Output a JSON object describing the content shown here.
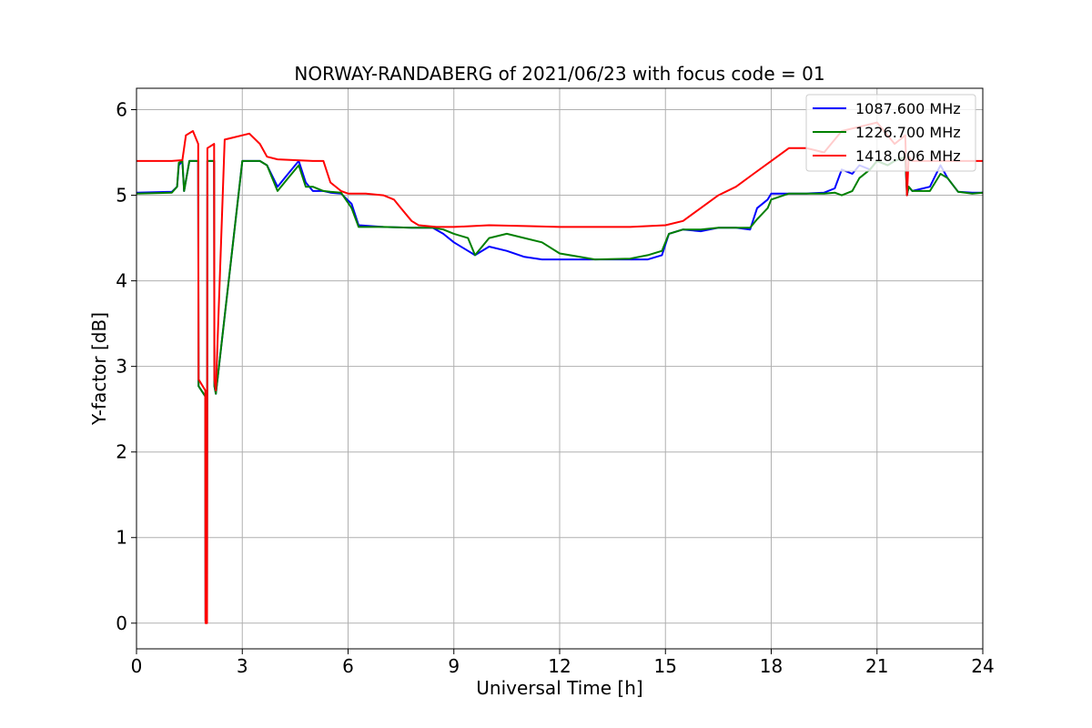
{
  "chart_data": {
    "type": "line",
    "title": "NORWAY-RANDABERG of 2021/06/23 with focus code = 01",
    "xlabel": "Universal Time [h]",
    "ylabel": "Y-factor [dB]",
    "xlim": [
      0,
      24
    ],
    "ylim": [
      -0.3,
      6.25
    ],
    "xticks": [
      0,
      3,
      6,
      9,
      12,
      15,
      18,
      21,
      24
    ],
    "yticks": [
      0,
      1,
      2,
      3,
      4,
      5,
      6
    ],
    "grid": true,
    "legend_position": "top-right",
    "series": [
      {
        "name": "1087.600 MHz",
        "color": "#0000ff",
        "x": [
          0,
          1.0,
          1.15,
          1.2,
          1.3,
          1.35,
          1.5,
          1.75,
          1.76,
          1.95,
          1.96,
          2.0,
          2.01,
          2.2,
          2.21,
          2.25,
          3.0,
          3.5,
          3.7,
          4.0,
          4.3,
          4.6,
          4.8,
          5.0,
          5.3,
          5.5,
          5.8,
          6.1,
          6.3,
          7.0,
          7.8,
          8.4,
          8.7,
          9.0,
          9.4,
          9.6,
          10.0,
          10.5,
          11.0,
          11.5,
          12.0,
          13.0,
          14.0,
          14.5,
          14.9,
          15.1,
          15.5,
          16.0,
          16.5,
          17.0,
          17.4,
          17.6,
          17.9,
          18.0,
          18.5,
          19.0,
          19.5,
          19.8,
          20.0,
          20.3,
          20.5,
          20.8,
          21.0,
          21.3,
          21.5,
          21.8,
          21.85,
          21.9,
          22.0,
          22.5,
          22.8,
          23.0,
          23.3,
          23.7,
          24.0
        ],
        "y": [
          5.03,
          5.04,
          5.1,
          5.35,
          5.4,
          5.05,
          5.4,
          5.4,
          2.77,
          2.65,
          0.02,
          0.02,
          5.4,
          5.4,
          2.77,
          2.68,
          5.4,
          5.4,
          5.35,
          5.1,
          5.25,
          5.4,
          5.15,
          5.05,
          5.05,
          5.03,
          5.02,
          4.9,
          4.65,
          4.63,
          4.62,
          4.62,
          4.55,
          4.45,
          4.35,
          4.3,
          4.4,
          4.35,
          4.28,
          4.25,
          4.25,
          4.25,
          4.25,
          4.25,
          4.3,
          4.55,
          4.6,
          4.58,
          4.62,
          4.62,
          4.6,
          4.85,
          4.95,
          5.02,
          5.02,
          5.02,
          5.03,
          5.08,
          5.3,
          5.25,
          5.35,
          5.3,
          5.4,
          5.35,
          5.4,
          5.45,
          5.0,
          5.1,
          5.05,
          5.1,
          5.35,
          5.2,
          5.04,
          5.03,
          5.03
        ]
      },
      {
        "name": "1226.700 MHz",
        "color": "#008000",
        "x": [
          0,
          1.0,
          1.15,
          1.2,
          1.3,
          1.35,
          1.5,
          1.75,
          1.76,
          1.95,
          1.96,
          2.0,
          2.01,
          2.2,
          2.21,
          2.25,
          3.0,
          3.5,
          3.7,
          4.0,
          4.3,
          4.6,
          4.8,
          5.0,
          5.3,
          5.5,
          5.8,
          6.1,
          6.3,
          7.0,
          7.8,
          8.4,
          8.7,
          9.0,
          9.4,
          9.6,
          10.0,
          10.5,
          11.0,
          11.5,
          12.0,
          13.0,
          14.0,
          14.5,
          14.9,
          15.1,
          15.5,
          16.0,
          16.5,
          17.0,
          17.4,
          17.6,
          17.9,
          18.0,
          18.5,
          19.0,
          19.5,
          19.8,
          20.0,
          20.3,
          20.5,
          20.8,
          21.0,
          21.3,
          21.5,
          21.8,
          21.85,
          21.9,
          22.0,
          22.5,
          22.8,
          23.0,
          23.3,
          23.7,
          24.0
        ],
        "y": [
          5.02,
          5.03,
          5.1,
          5.38,
          5.4,
          5.05,
          5.4,
          5.4,
          2.77,
          2.65,
          0.02,
          0.02,
          5.4,
          5.4,
          2.77,
          2.68,
          5.4,
          5.4,
          5.35,
          5.05,
          5.2,
          5.35,
          5.1,
          5.1,
          5.05,
          5.04,
          5.03,
          4.85,
          4.63,
          4.63,
          4.62,
          4.62,
          4.6,
          4.55,
          4.5,
          4.3,
          4.5,
          4.55,
          4.5,
          4.45,
          4.32,
          4.25,
          4.26,
          4.3,
          4.35,
          4.55,
          4.6,
          4.6,
          4.62,
          4.62,
          4.62,
          4.72,
          4.85,
          4.95,
          5.02,
          5.02,
          5.02,
          5.03,
          5.0,
          5.05,
          5.2,
          5.3,
          5.4,
          5.35,
          5.4,
          5.45,
          5.0,
          5.1,
          5.05,
          5.05,
          5.25,
          5.2,
          5.04,
          5.02,
          5.03
        ]
      },
      {
        "name": "1418.006 MHz",
        "color": "#ff0000",
        "x": [
          0,
          1.0,
          1.3,
          1.4,
          1.6,
          1.75,
          1.76,
          1.95,
          1.96,
          2.0,
          2.01,
          2.2,
          2.21,
          2.25,
          2.5,
          3.0,
          3.2,
          3.5,
          3.7,
          4.0,
          5.0,
          5.3,
          5.5,
          5.8,
          6.0,
          6.5,
          7.0,
          7.3,
          7.5,
          7.8,
          8.0,
          8.5,
          9.0,
          10.0,
          11.0,
          12.0,
          13.0,
          14.0,
          15.0,
          15.5,
          16.0,
          16.5,
          17.0,
          17.5,
          18.0,
          18.5,
          19.0,
          19.5,
          20.0,
          20.5,
          21.0,
          21.3,
          21.5,
          21.8,
          21.85,
          21.9,
          22.0,
          23.0,
          24.0
        ],
        "y": [
          5.4,
          5.4,
          5.41,
          5.7,
          5.75,
          5.6,
          2.85,
          2.72,
          0.0,
          0.0,
          5.55,
          5.6,
          2.85,
          2.72,
          5.65,
          5.7,
          5.72,
          5.6,
          5.45,
          5.42,
          5.4,
          5.4,
          5.15,
          5.05,
          5.02,
          5.02,
          5.0,
          4.95,
          4.85,
          4.7,
          4.65,
          4.63,
          4.63,
          4.65,
          4.64,
          4.63,
          4.63,
          4.63,
          4.65,
          4.7,
          4.85,
          5.0,
          5.1,
          5.25,
          5.4,
          5.55,
          5.55,
          5.5,
          5.75,
          5.8,
          5.85,
          5.7,
          5.6,
          5.7,
          5.0,
          5.45,
          5.4,
          5.4,
          5.4
        ]
      }
    ]
  }
}
